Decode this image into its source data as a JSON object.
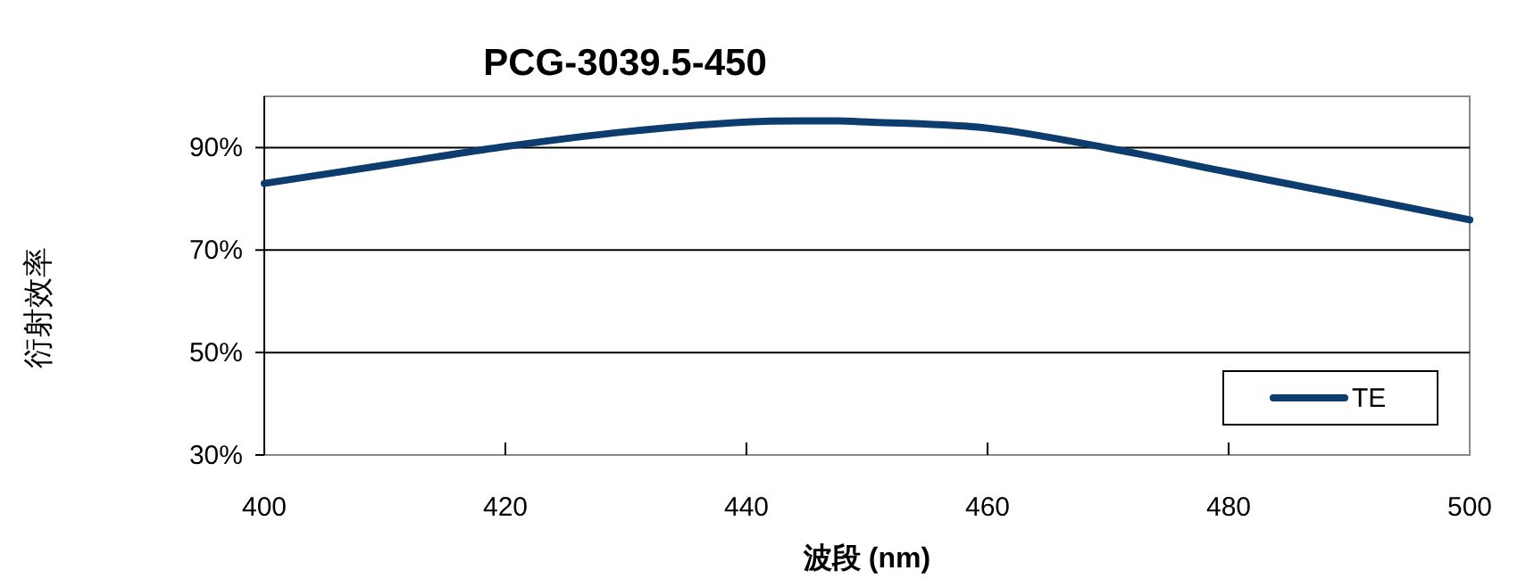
{
  "chart_data": {
    "type": "line",
    "title": "PCG-3039.5-450",
    "xlabel": "波段 (nm)",
    "ylabel": "衍射效率",
    "xlim": [
      400,
      500
    ],
    "xticks": [
      400,
      420,
      440,
      460,
      480,
      500
    ],
    "ylim": [
      30,
      100
    ],
    "yticks": [
      {
        "value": 30,
        "label": "30%"
      },
      {
        "value": 50,
        "label": "50%"
      },
      {
        "value": 70,
        "label": "70%"
      },
      {
        "value": 90,
        "label": "90%"
      }
    ],
    "grid": "y",
    "legend": "bottom right",
    "marker": "none",
    "line_style": "solid",
    "x": [
      400,
      410,
      420,
      430,
      440,
      447,
      450,
      460,
      470,
      480,
      490,
      500
    ],
    "series": [
      {
        "name": "TE",
        "color": "#0d3c6e",
        "values": [
          83,
          86.6,
          90.2,
          93.1,
          95,
          95.2,
          95,
          93.8,
          89.9,
          85.2,
          80.6,
          75.9
        ]
      }
    ]
  }
}
